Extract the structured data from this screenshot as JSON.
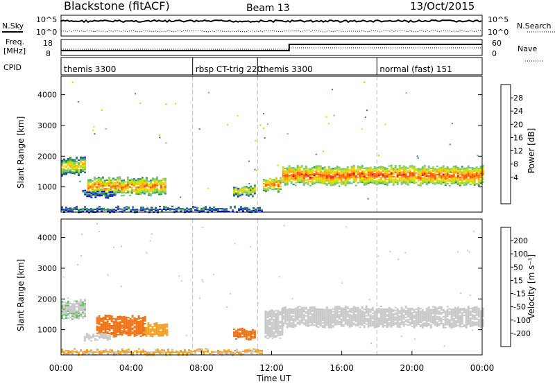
{
  "header": {
    "title": "Blackstone (fitACF)",
    "beam": "Beam 13",
    "date": "13/Oct/2015"
  },
  "top_panels": {
    "nsky_label": "N.Sky",
    "nsearch_label": "N.Search",
    "noise_ticks": [
      "10^5",
      "10^0"
    ],
    "freq_label": "Freq.",
    "freq_unit": "[MHz]",
    "freq_ticks": [
      "18",
      "8"
    ],
    "nave_label": "Nave",
    "nave_ticks": [
      "60",
      "0"
    ],
    "cpid_label": "CPID",
    "cpid_segments": [
      {
        "label": "themis 3300",
        "start_hour": 0.0
      },
      {
        "label": "rbsp CT-trig 220",
        "start_hour": 7.5
      },
      {
        "label": "themis 3300",
        "start_hour": 11.2
      },
      {
        "label": "normal (fast) 151",
        "start_hour": 18.0
      }
    ]
  },
  "power_panel": {
    "ylabel": "Slant Range [km]",
    "colorbar_label": "Power [dB]",
    "colorbar_ticks": [
      "28",
      "24",
      "20",
      "16",
      "12",
      "8",
      "4"
    ],
    "colors": [
      "#ff0000",
      "#ff5500",
      "#ffa500",
      "#f2d400",
      "#b8e000",
      "#6cc46c",
      "#2e8b57",
      "#1f4fa0",
      "#0000ff"
    ]
  },
  "velocity_panel": {
    "ylabel": "Slant Range [km]",
    "colorbar_label": "Velocity [m s⁻¹]",
    "colorbar_ticks": [
      "200",
      "100",
      "50",
      "15",
      "-15",
      "-50",
      "-100",
      "-200"
    ],
    "colors": [
      "#1e3fa0",
      "#3c7a4a",
      "#5fc25f",
      "#c8c8c8",
      "#c8c8c8",
      "#f0a020",
      "#f07010",
      "#e83010",
      "#ff0000"
    ]
  },
  "y_ticks": [
    "4000",
    "3000",
    "2000",
    "1000"
  ],
  "x_axis": {
    "label": "Time UT",
    "ticks": [
      "00:00",
      "04:00",
      "08:00",
      "12:00",
      "16:00",
      "20:00",
      "00:00"
    ]
  },
  "chart_data": {
    "type": "heatmap",
    "xlim": [
      0,
      24
    ],
    "ylim": [
      180,
      4600
    ],
    "power_regions": [
      {
        "x0": 0.0,
        "x1": 1.4,
        "ycenter": 1650,
        "height": 500,
        "peak": 20
      },
      {
        "x0": 1.5,
        "x1": 6.0,
        "ycenter": 1000,
        "height": 500,
        "peak": 24
      },
      {
        "x0": 1.2,
        "x1": 3.0,
        "ycenter": 750,
        "height": 150,
        "peak": 12
      },
      {
        "x0": 9.8,
        "x1": 11.0,
        "ycenter": 850,
        "height": 300,
        "peak": 20
      },
      {
        "x0": 11.5,
        "x1": 12.5,
        "ycenter": 1050,
        "height": 400,
        "peak": 24
      },
      {
        "x0": 12.6,
        "x1": 24.0,
        "ycenter": 1350,
        "height": 550,
        "peak": 26
      },
      {
        "x0": 0.0,
        "x1": 11.5,
        "ycenter": 260,
        "height": 120,
        "peak": 12
      }
    ],
    "velocity_regions": [
      {
        "x0": 0.0,
        "x1": 1.4,
        "ycenter": 1650,
        "height": 550,
        "vel": 10
      },
      {
        "x0": 2.0,
        "x1": 4.8,
        "ycenter": 1100,
        "height": 600,
        "vel": -80
      },
      {
        "x0": 4.8,
        "x1": 6.0,
        "ycenter": 1000,
        "height": 400,
        "vel": -40
      },
      {
        "x0": 1.3,
        "x1": 2.8,
        "ycenter": 750,
        "height": 150,
        "vel": 5
      },
      {
        "x0": 9.8,
        "x1": 11.0,
        "ycenter": 850,
        "height": 300,
        "vel": -60
      },
      {
        "x0": 11.6,
        "x1": 12.6,
        "ycenter": 1200,
        "height": 900,
        "vel": 5
      },
      {
        "x0": 12.6,
        "x1": 24.0,
        "ycenter": 1400,
        "height": 600,
        "vel": 0
      },
      {
        "x0": 0.0,
        "x1": 11.5,
        "ycenter": 260,
        "height": 110,
        "vel": -20
      }
    ]
  }
}
